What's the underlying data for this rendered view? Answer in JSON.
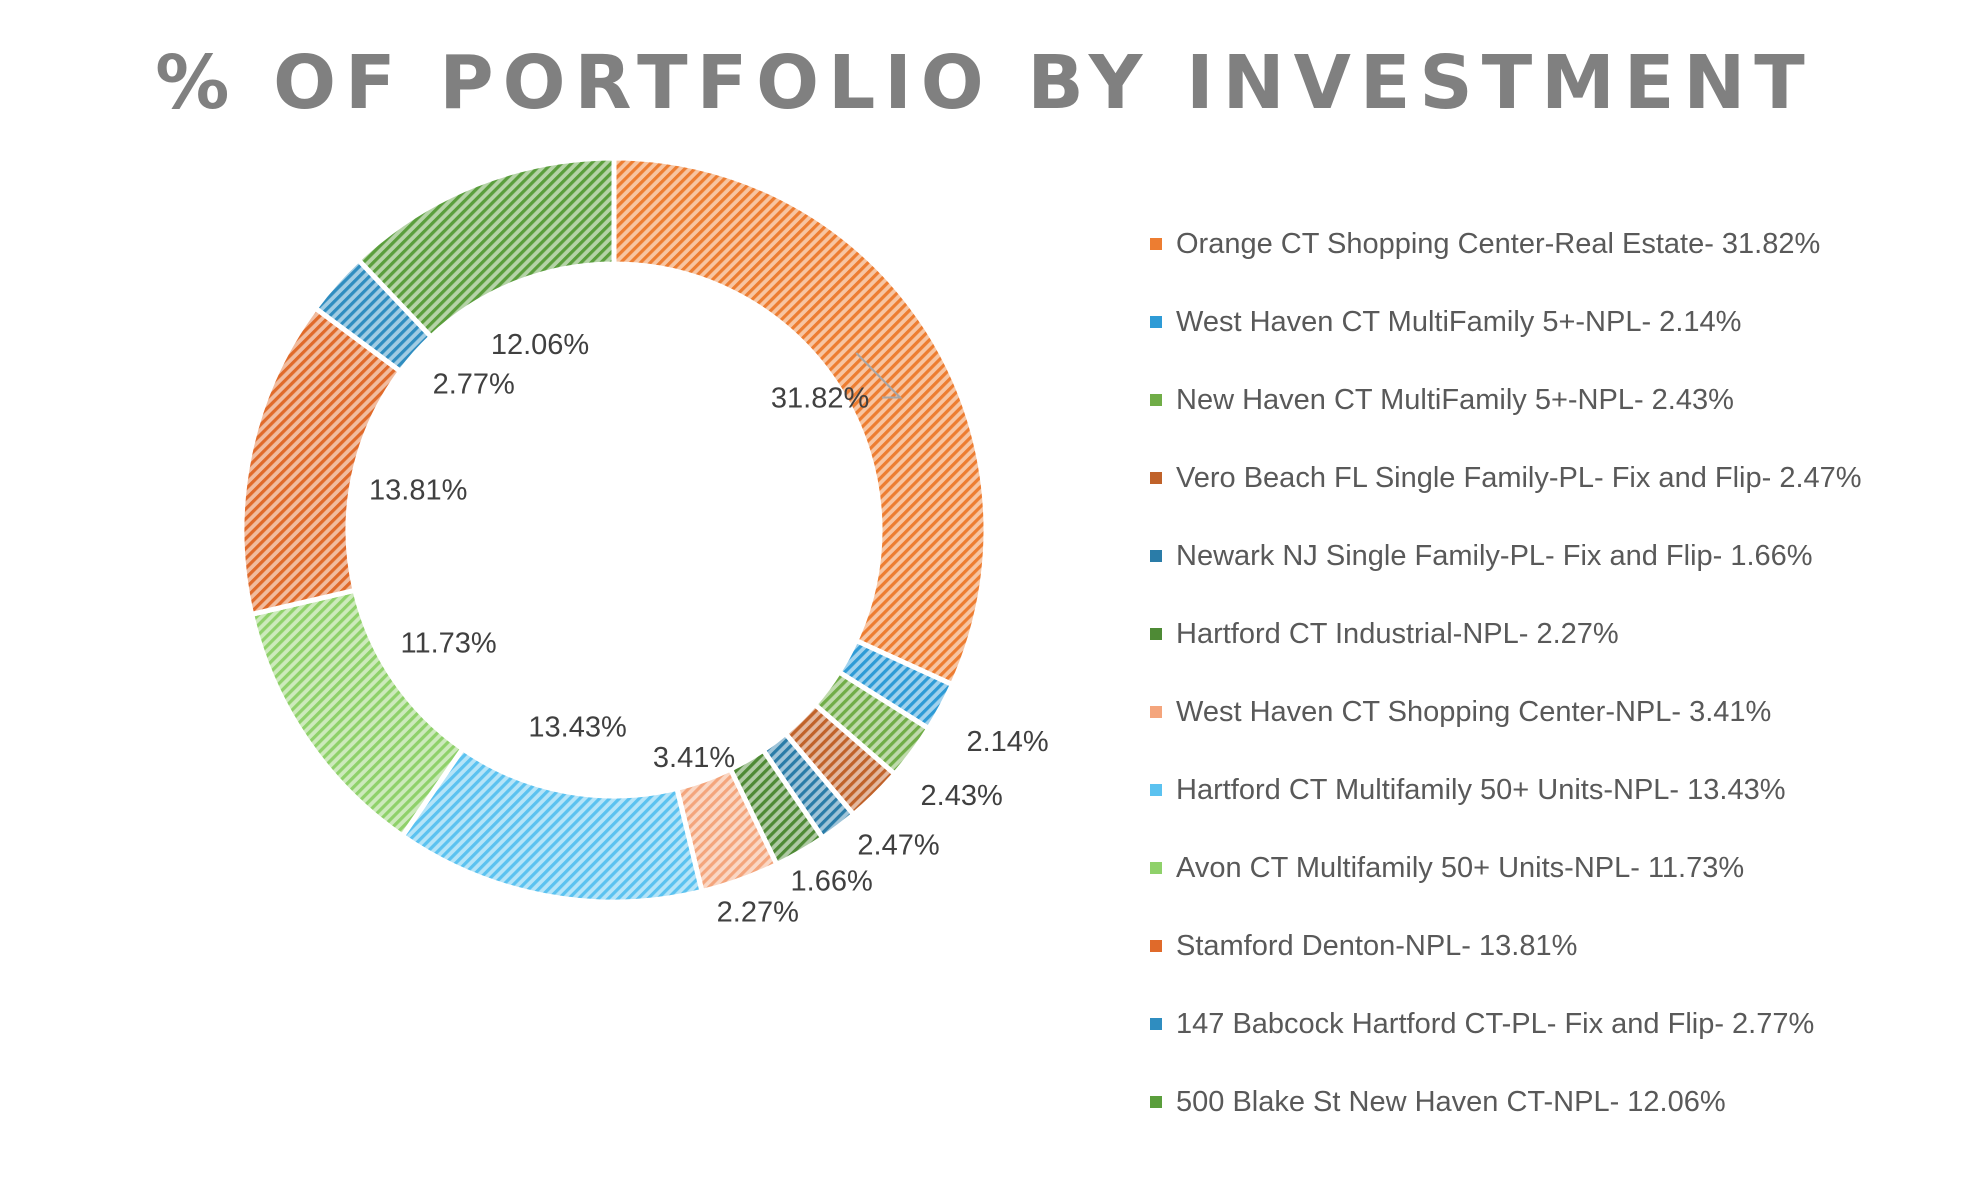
{
  "chart_data": {
    "type": "pie",
    "variant": "donut",
    "title": "% OF PORTFOLIO BY INVESTMENT",
    "legend_position": "right",
    "categories": [
      "Orange CT Shopping Center-Real Estate",
      "West Haven CT MultiFamily 5+-NPL",
      "New Haven CT MultiFamily 5+-NPL",
      "Vero Beach FL Single Family-PL- Fix and Flip",
      "Newark NJ Single Family-PL- Fix and Flip",
      "Hartford CT Industrial-NPL",
      "West Haven CT Shopping Center-NPL",
      "Hartford CT Multifamily 50+ Units-NPL",
      "Avon CT Multifamily 50+ Units-NPL",
      "Stamford Denton-NPL",
      "147 Babcock Hartford CT-PL- Fix and Flip",
      "500 Blake St New Haven CT-NPL"
    ],
    "values": [
      31.82,
      2.14,
      2.43,
      2.47,
      1.66,
      2.27,
      3.41,
      13.43,
      11.73,
      13.81,
      2.77,
      12.06
    ],
    "data_labels": [
      "31.82%",
      "2.14%",
      "2.43%",
      "2.47%",
      "1.66%",
      "2.27%",
      "3.41%",
      "13.43%",
      "11.73%",
      "13.81%",
      "2.77%",
      "12.06%"
    ],
    "legend_labels": [
      "Orange CT Shopping Center-Real Estate- 31.82%",
      "West Haven CT MultiFamily 5+-NPL- 2.14%",
      "New Haven CT MultiFamily 5+-NPL- 2.43%",
      "Vero Beach FL Single Family-PL- Fix and Flip- 2.47%",
      "Newark NJ Single Family-PL- Fix and Flip- 1.66%",
      "Hartford CT Industrial-NPL- 2.27%",
      "West Haven CT Shopping Center-NPL- 3.41%",
      "Hartford CT Multifamily 50+ Units-NPL- 13.43%",
      "Avon CT Multifamily 50+ Units-NPL- 11.73%",
      "Stamford Denton-NPL- 13.81%",
      "147 Babcock Hartford CT-PL- Fix and Flip- 2.77%",
      "500 Blake St New Haven CT-NPL- 12.06%"
    ],
    "colors": [
      "#ED7D31",
      "#2E9BD6",
      "#70AD47",
      "#C0622A",
      "#2A7CA8",
      "#4E8A35",
      "#F4A57C",
      "#5BC2F0",
      "#8FD16A",
      "#E06A2A",
      "#2F8DC0",
      "#5A9E3C"
    ],
    "pattern": "diagonal-hatch"
  }
}
